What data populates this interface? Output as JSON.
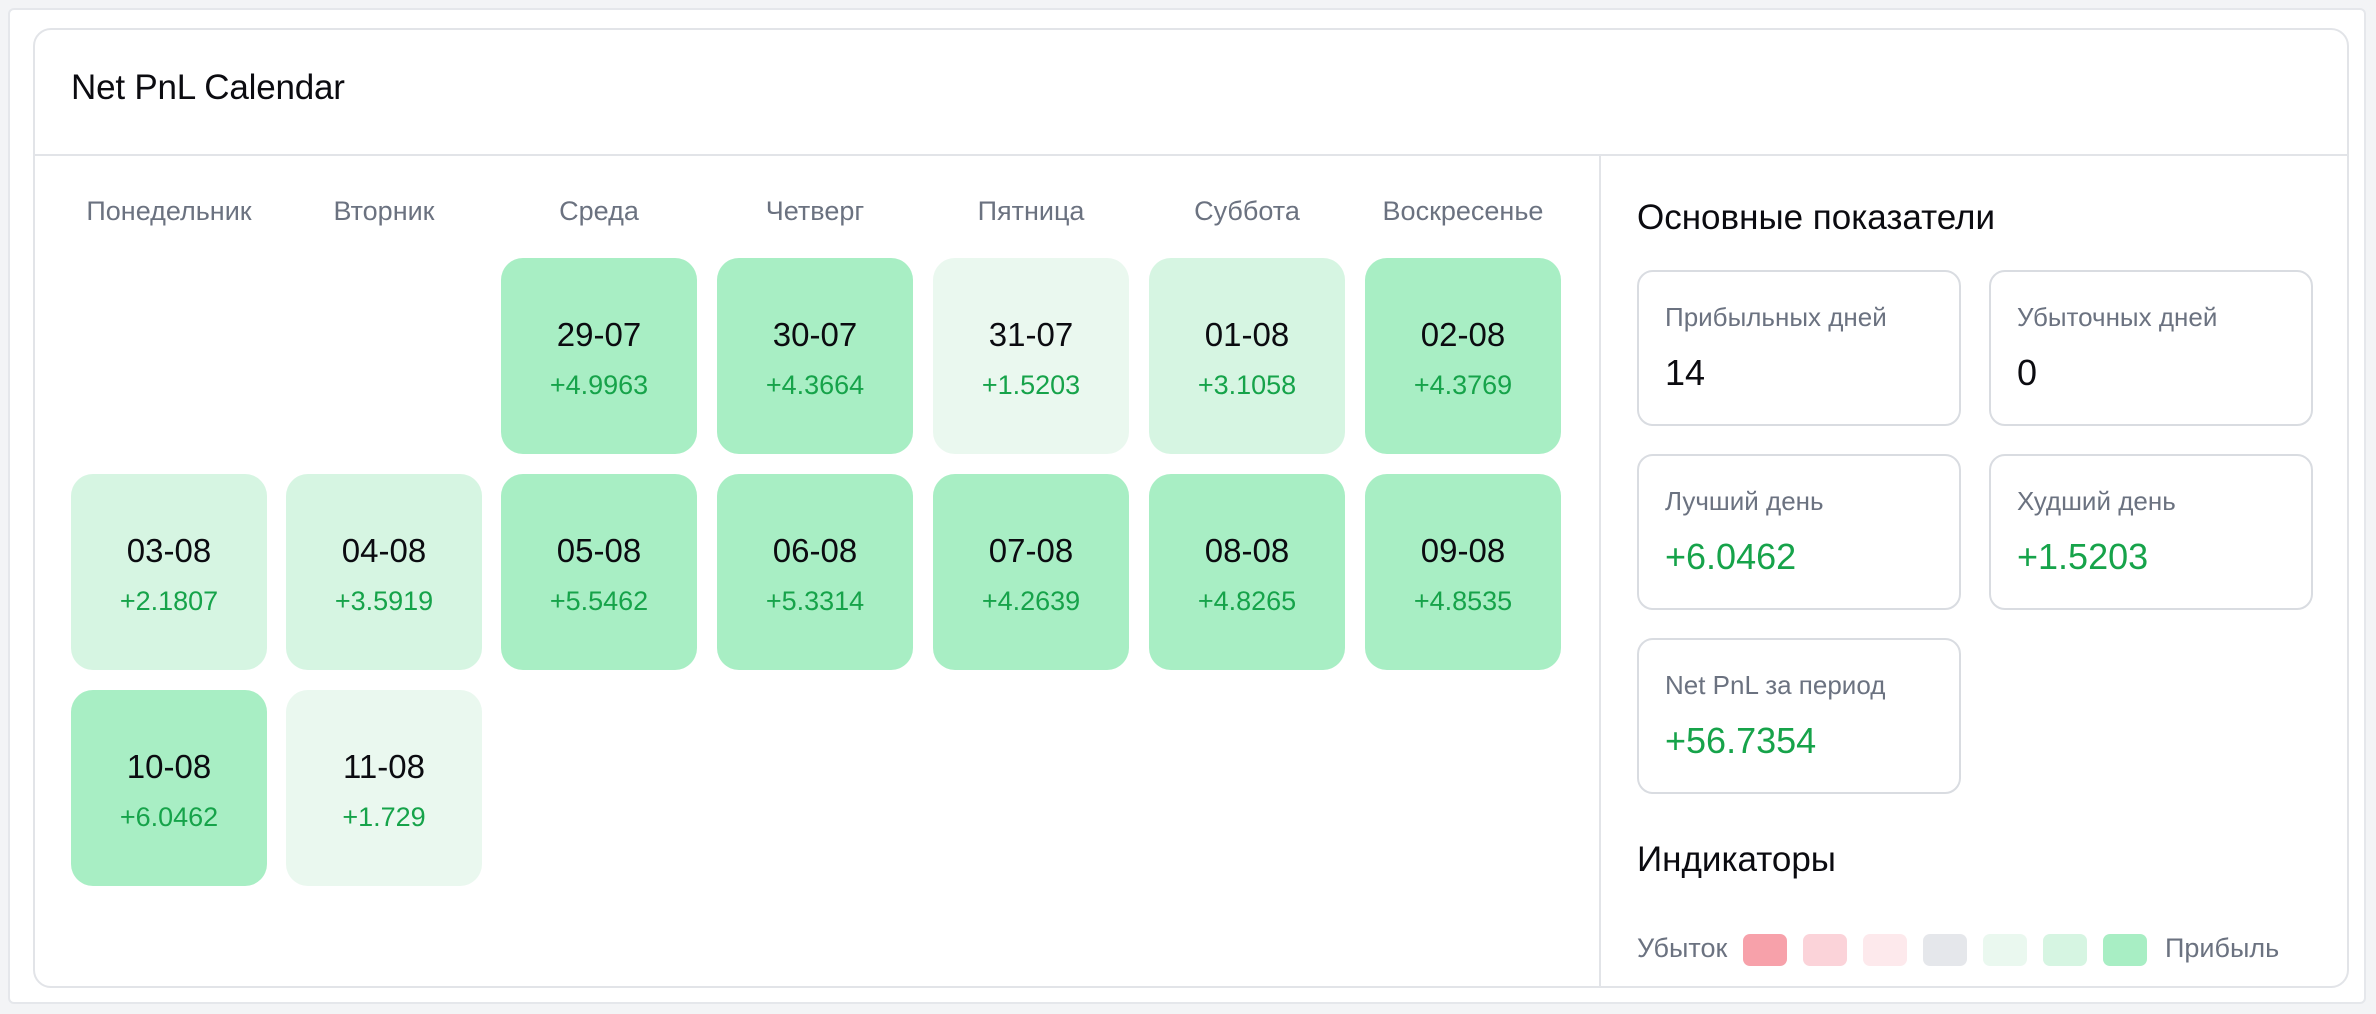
{
  "header": {
    "title": "Net PnL Calendar"
  },
  "calendar": {
    "weekdays": [
      "Понедельник",
      "Вторник",
      "Среда",
      "Четверг",
      "Пятница",
      "Суббота",
      "Воскресенье"
    ],
    "days": [
      {
        "date": "29-07",
        "pnl": "+4.9963",
        "level": 3
      },
      {
        "date": "30-07",
        "pnl": "+4.3664",
        "level": 3
      },
      {
        "date": "31-07",
        "pnl": "+1.5203",
        "level": 1
      },
      {
        "date": "01-08",
        "pnl": "+3.1058",
        "level": 2
      },
      {
        "date": "02-08",
        "pnl": "+4.3769",
        "level": 3
      },
      {
        "date": "03-08",
        "pnl": "+2.1807",
        "level": 2
      },
      {
        "date": "04-08",
        "pnl": "+3.5919",
        "level": 2
      },
      {
        "date": "05-08",
        "pnl": "+5.5462",
        "level": 3
      },
      {
        "date": "06-08",
        "pnl": "+5.3314",
        "level": 3
      },
      {
        "date": "07-08",
        "pnl": "+4.2639",
        "level": 3
      },
      {
        "date": "08-08",
        "pnl": "+4.8265",
        "level": 3
      },
      {
        "date": "09-08",
        "pnl": "+4.8535",
        "level": 3
      },
      {
        "date": "10-08",
        "pnl": "+6.0462",
        "level": 3
      },
      {
        "date": "11-08",
        "pnl": "+1.729",
        "level": 1
      }
    ]
  },
  "metrics": {
    "title": "Основные показатели",
    "profitable_days": {
      "label": "Прибыльных дней",
      "value": "14"
    },
    "losing_days": {
      "label": "Убыточных дней",
      "value": "0"
    },
    "best_day": {
      "label": "Лучший день",
      "value": "+6.0462"
    },
    "worst_day": {
      "label": "Худший день",
      "value": "+1.5203"
    },
    "net_pnl": {
      "label": "Net PnL за период",
      "value": "+56.7354"
    }
  },
  "indicators": {
    "title": "Индикаторы",
    "loss_label": "Убыток",
    "profit_label": "Прибыль",
    "swatches": [
      "#f7a1aa",
      "#fbd3d9",
      "#fde9ec",
      "#e5e7eb",
      "#eaf8ef",
      "#d6f5e2",
      "#a8eec4"
    ]
  },
  "colors": {
    "profit_text": "#16a34a",
    "level_1": "#eaf8ef",
    "level_2": "#d6f5e2",
    "level_3": "#a8eec4"
  }
}
